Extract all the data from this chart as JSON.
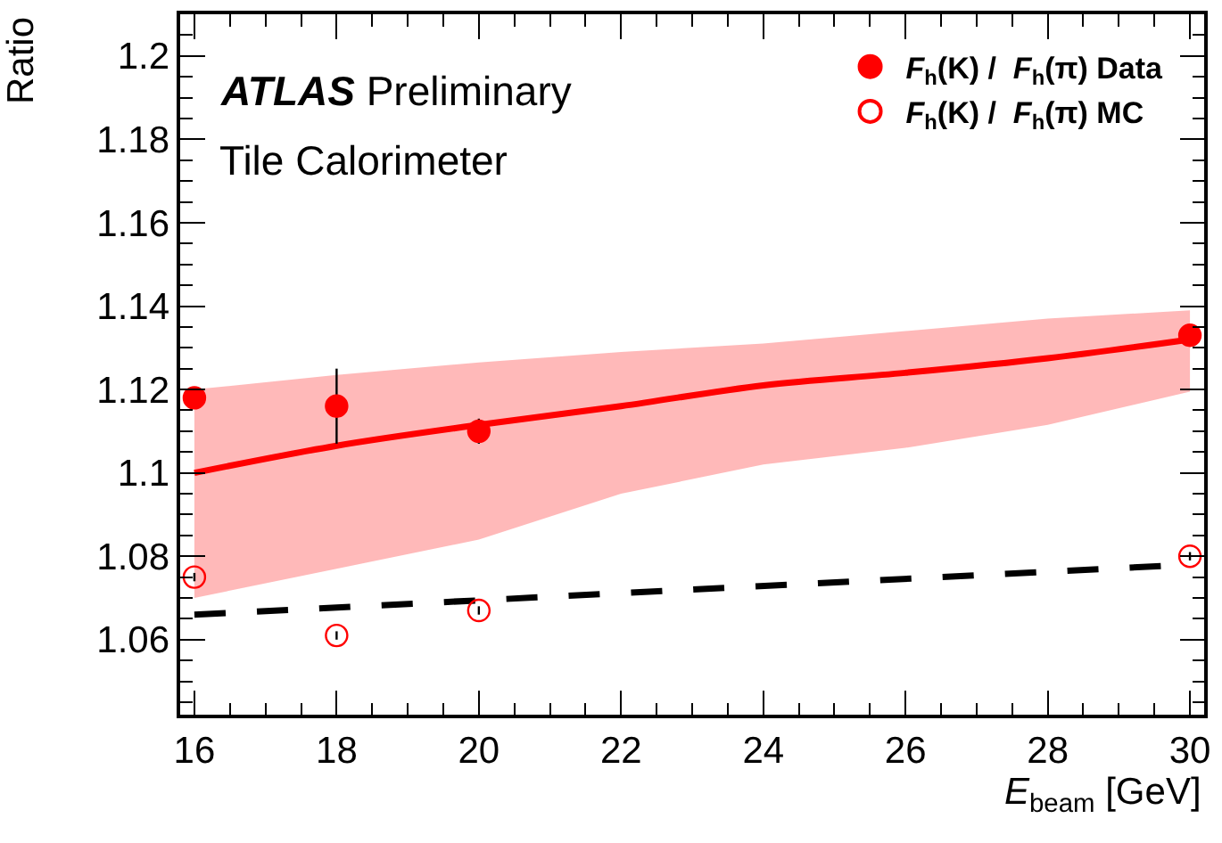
{
  "chart_data": {
    "type": "scatter",
    "xlabel": "E$_{beam}$ [GeV]",
    "ylabel": "Ratio",
    "annotations": [
      "ATLAS Preliminary",
      "Tile Calorimeter"
    ],
    "xlim": [
      15.8,
      30.2
    ],
    "xticks": [
      16,
      18,
      20,
      22,
      24,
      26,
      28,
      30
    ],
    "ylim": [
      1.042,
      1.21
    ],
    "yticks": [
      1.06,
      1.08,
      1.1,
      1.12,
      1.14,
      1.16,
      1.18,
      1.2
    ],
    "legend": "top right",
    "series": [
      {
        "type": "line",
        "color": "#ff0000",
        "x": [
          16,
          18,
          20,
          22,
          24,
          26,
          28,
          30
        ],
        "values": [
          1.1,
          1.1065,
          1.1115,
          1.116,
          1.121,
          1.124,
          1.1275,
          1.132
        ],
        "lower": [
          1.07,
          1.077,
          1.084,
          1.095,
          1.102,
          1.106,
          1.1115,
          1.1195
        ],
        "upper": [
          1.12,
          1.1235,
          1.1265,
          1.129,
          1.131,
          1.134,
          1.137,
          1.139
        ],
        "marker": "none",
        "line_style": "solid"
      },
      {
        "type": "line",
        "color": "#000000",
        "x": [
          16,
          23,
          30
        ],
        "values": [
          1.066,
          1.072,
          1.078
        ],
        "marker": "none",
        "line_style": "dashed"
      },
      {
        "name": "F$_{h}$(K) /  F$_{h}$(π) Data",
        "color": "#ff0000",
        "marker": "circle",
        "x": [
          16,
          18,
          20,
          30
        ],
        "values": [
          1.118,
          1.116,
          1.11,
          1.133
        ],
        "errors": [
          null,
          0.009,
          0.003,
          null
        ]
      },
      {
        "name": "F$_{h}$(K) /  F$_{h}$(π) MC",
        "color": "#ff0000",
        "marker": "circle-open",
        "x": [
          16,
          18,
          20,
          30
        ],
        "values": [
          1.075,
          1.061,
          1.067,
          1.08
        ],
        "errors": [
          0.001,
          0.001,
          0.001,
          0.001
        ]
      }
    ]
  }
}
